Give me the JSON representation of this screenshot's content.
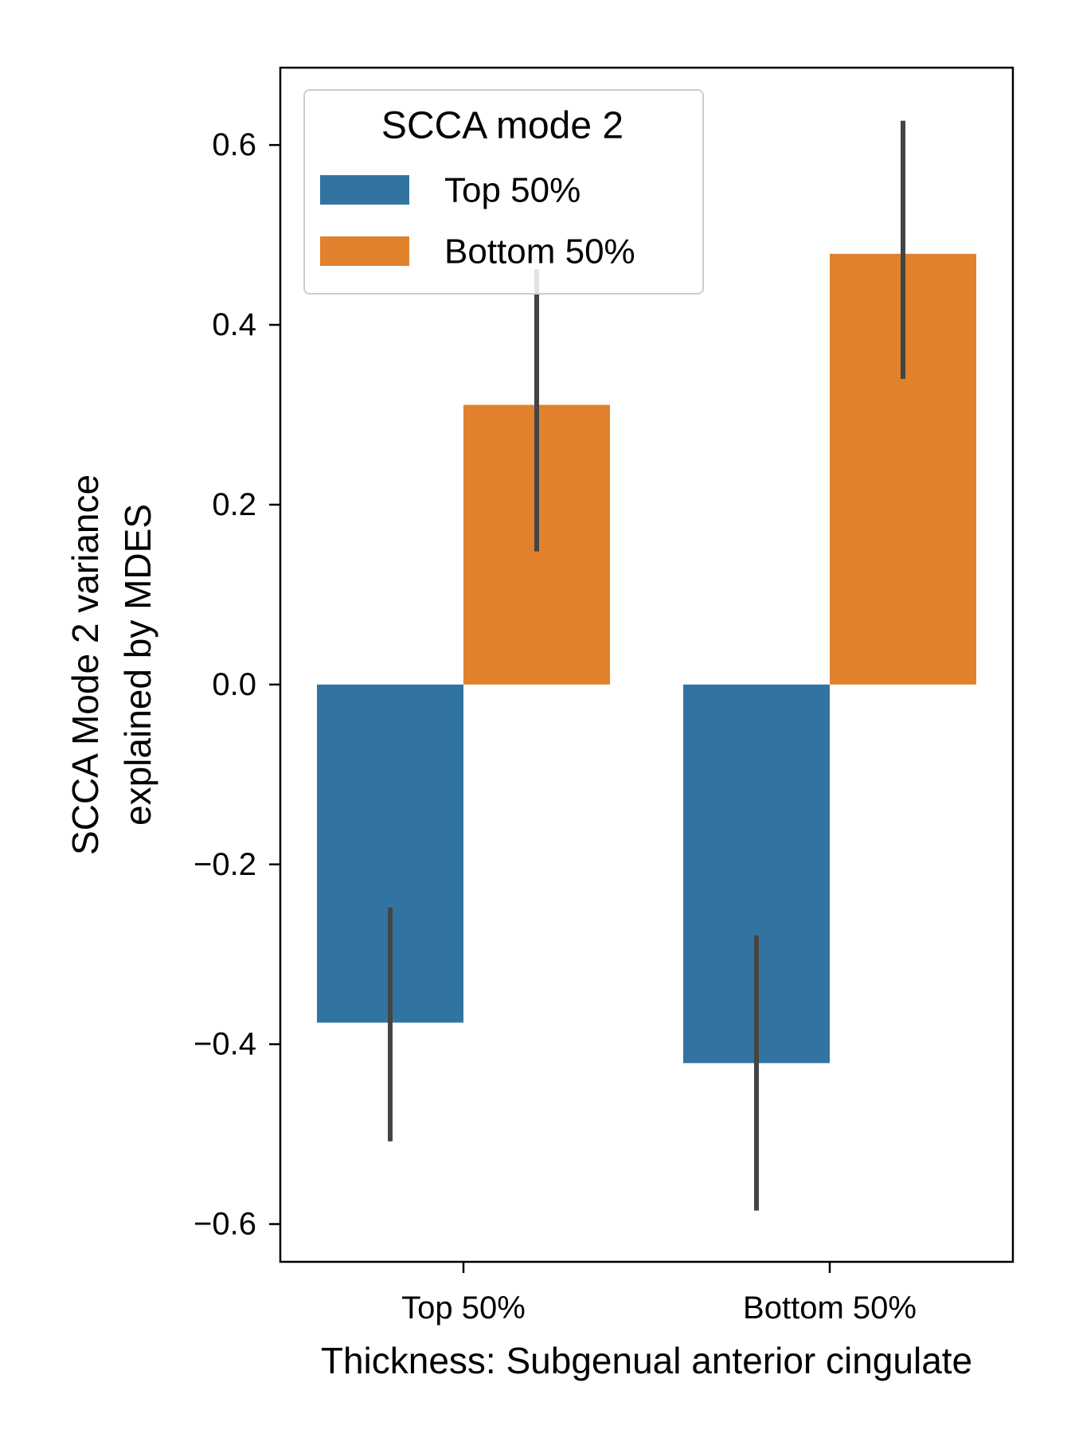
{
  "chart_data": {
    "type": "bar",
    "title": "",
    "xlabel": "Thickness: Subgenual anterior cingulate",
    "ylabel_lines": [
      "SCCA Mode 2 variance",
      "explained by MDES"
    ],
    "categories": [
      "Top 50%",
      "Bottom 50%"
    ],
    "series": [
      {
        "name": "Top 50%",
        "color": "#3274a1",
        "values": [
          -0.376,
          -0.421
        ],
        "ci_low": [
          -0.508,
          -0.585
        ],
        "ci_high": [
          -0.248,
          -0.279
        ]
      },
      {
        "name": "Bottom 50%",
        "color": "#e1812c",
        "values": [
          0.311,
          0.479
        ],
        "ci_low": [
          0.148,
          0.34
        ],
        "ci_high": [
          0.462,
          0.627
        ]
      }
    ],
    "ylim": [
      -0.642,
      0.686
    ],
    "yticks": [
      -0.6,
      -0.4,
      -0.2,
      0.0,
      0.2,
      0.4,
      0.6
    ],
    "ytick_labels": [
      "−0.6",
      "−0.4",
      "−0.2",
      "0.0",
      "0.2",
      "0.4",
      "0.6"
    ],
    "grid": false,
    "errorbar_color": "#444444",
    "legend": {
      "title": "SCCA mode 2",
      "placement": "upper-left",
      "entries": [
        "Top 50%",
        "Bottom 50%"
      ]
    }
  }
}
